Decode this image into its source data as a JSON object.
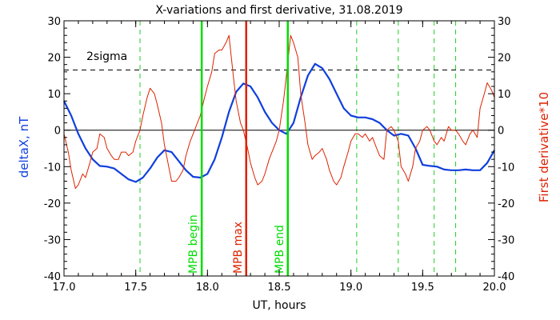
{
  "chart_data": {
    "type": "line",
    "title": "X-variations and first derivative, 31.08.2019",
    "xlabel": "UT, hours",
    "ylabel_left": "deltaX, nT",
    "ylabel_right": "First derivative*10",
    "xlim": [
      17.0,
      20.0
    ],
    "ylim": [
      -40,
      30
    ],
    "x_ticks": [
      17.0,
      17.5,
      18.0,
      18.5,
      19.0,
      19.5,
      20.0
    ],
    "x_tick_labels": [
      "17.0",
      "17.5",
      "18.0",
      "18.5",
      "19.0",
      "19.5",
      "20.0"
    ],
    "y_ticks": [
      -40,
      -30,
      -20,
      -10,
      0,
      10,
      20,
      30
    ],
    "y_tick_labels": [
      "-40",
      "-30",
      "-20",
      "-10",
      "0",
      "10",
      "20",
      "30"
    ],
    "zero_line": 0,
    "sigma_level": 16.5,
    "sigma_label": "2sigma",
    "dashed_green_lines": [
      17.53,
      19.04,
      19.33,
      19.58,
      19.73
    ],
    "markers": [
      {
        "x": 17.96,
        "label": "MPB begin",
        "color": "#00dd00"
      },
      {
        "x": 18.27,
        "label": "MPB max",
        "color": "#dd2200"
      },
      {
        "x": 18.56,
        "label": "MPB end",
        "color": "#00dd00"
      }
    ],
    "series": [
      {
        "color": "#1040dd",
        "axis": "left",
        "x": [
          17.0,
          17.05,
          17.1,
          17.15,
          17.2,
          17.25,
          17.3,
          17.35,
          17.4,
          17.45,
          17.5,
          17.55,
          17.6,
          17.65,
          17.7,
          17.75,
          17.8,
          17.85,
          17.9,
          17.95,
          18.0,
          18.05,
          18.1,
          18.15,
          18.2,
          18.25,
          18.3,
          18.35,
          18.4,
          18.45,
          18.5,
          18.55,
          18.6,
          18.65,
          18.7,
          18.75,
          18.8,
          18.85,
          18.9,
          18.95,
          19.0,
          19.05,
          19.1,
          19.15,
          19.2,
          19.25,
          19.3,
          19.35,
          19.4,
          19.45,
          19.5,
          19.55,
          19.6,
          19.65,
          19.7,
          19.75,
          19.8,
          19.85,
          19.9,
          19.95,
          20.0
        ],
        "values": [
          8,
          4,
          -1,
          -5,
          -8,
          -9.8,
          -10,
          -10.5,
          -12,
          -13.5,
          -14.2,
          -13,
          -10.5,
          -7.5,
          -5.5,
          -6,
          -8.5,
          -11,
          -12.8,
          -13,
          -12,
          -8,
          -2,
          5,
          10.5,
          12.8,
          12,
          9,
          5,
          2,
          0,
          -1,
          2,
          9,
          15,
          18.2,
          17,
          14,
          10,
          6,
          4,
          3.5,
          3.5,
          3,
          2,
          0,
          -1.5,
          -1,
          -1.5,
          -5,
          -9.5,
          -9.8,
          -10,
          -10.8,
          -11,
          -11,
          -10.8,
          -11,
          -11,
          -9,
          -5.5
        ]
      },
      {
        "color": "#dd2200",
        "axis": "right",
        "x": [
          17.0,
          17.03,
          17.05,
          17.08,
          17.1,
          17.13,
          17.15,
          17.18,
          17.2,
          17.23,
          17.25,
          17.28,
          17.3,
          17.33,
          17.35,
          17.38,
          17.4,
          17.43,
          17.45,
          17.48,
          17.5,
          17.53,
          17.55,
          17.58,
          17.6,
          17.63,
          17.65,
          17.68,
          17.7,
          17.73,
          17.75,
          17.78,
          17.8,
          17.83,
          17.85,
          17.88,
          17.9,
          17.93,
          17.95,
          17.98,
          18.0,
          18.03,
          18.05,
          18.08,
          18.1,
          18.13,
          18.15,
          18.18,
          18.2,
          18.23,
          18.25,
          18.28,
          18.3,
          18.33,
          18.35,
          18.38,
          18.4,
          18.43,
          18.45,
          18.48,
          18.5,
          18.53,
          18.55,
          18.58,
          18.6,
          18.63,
          18.65,
          18.68,
          18.7,
          18.73,
          18.75,
          18.78,
          18.8,
          18.83,
          18.85,
          18.88,
          18.9,
          18.93,
          18.95,
          18.98,
          19.0,
          19.03,
          19.05,
          19.08,
          19.1,
          19.13,
          19.15,
          19.18,
          19.2,
          19.23,
          19.25,
          19.28,
          19.3,
          19.33,
          19.35,
          19.38,
          19.4,
          19.43,
          19.45,
          19.48,
          19.5,
          19.53,
          19.55,
          19.58,
          19.6,
          19.63,
          19.65,
          19.68,
          19.7,
          19.73,
          19.75,
          19.78,
          19.8,
          19.83,
          19.85,
          19.88,
          19.9,
          19.93,
          19.95,
          19.98,
          20.0
        ],
        "values": [
          -1,
          -6,
          -11,
          -16,
          -15,
          -12,
          -13,
          -9,
          -6,
          -5,
          -1,
          -2,
          -5,
          -7,
          -8,
          -8,
          -6,
          -6,
          -7,
          -6,
          -3,
          0,
          4,
          9,
          11.5,
          10,
          7,
          2,
          -4,
          -10,
          -14,
          -14,
          -13,
          -11,
          -7,
          -3,
          -1,
          2,
          4,
          9,
          12,
          16,
          21,
          22,
          22,
          24,
          26,
          15,
          8,
          2,
          0,
          -5,
          -9,
          -13,
          -15,
          -14,
          -12,
          -8,
          -6,
          -3,
          0,
          8,
          15,
          26,
          24,
          20,
          10,
          2,
          -4,
          -8,
          -7,
          -6,
          -5,
          -8,
          -11,
          -14,
          -15,
          -13,
          -10,
          -6,
          -3,
          -1,
          -1,
          -2,
          -1,
          -3,
          -2,
          -5,
          -7,
          -8,
          0,
          1,
          0,
          -3,
          -10,
          -12,
          -14,
          -10,
          -5,
          -3,
          0,
          1,
          0,
          -3,
          -4,
          -2,
          -3,
          1,
          0,
          0,
          -1,
          -3,
          -4,
          -1,
          0,
          -2,
          6,
          10,
          13,
          11,
          9
        ]
      }
    ]
  }
}
